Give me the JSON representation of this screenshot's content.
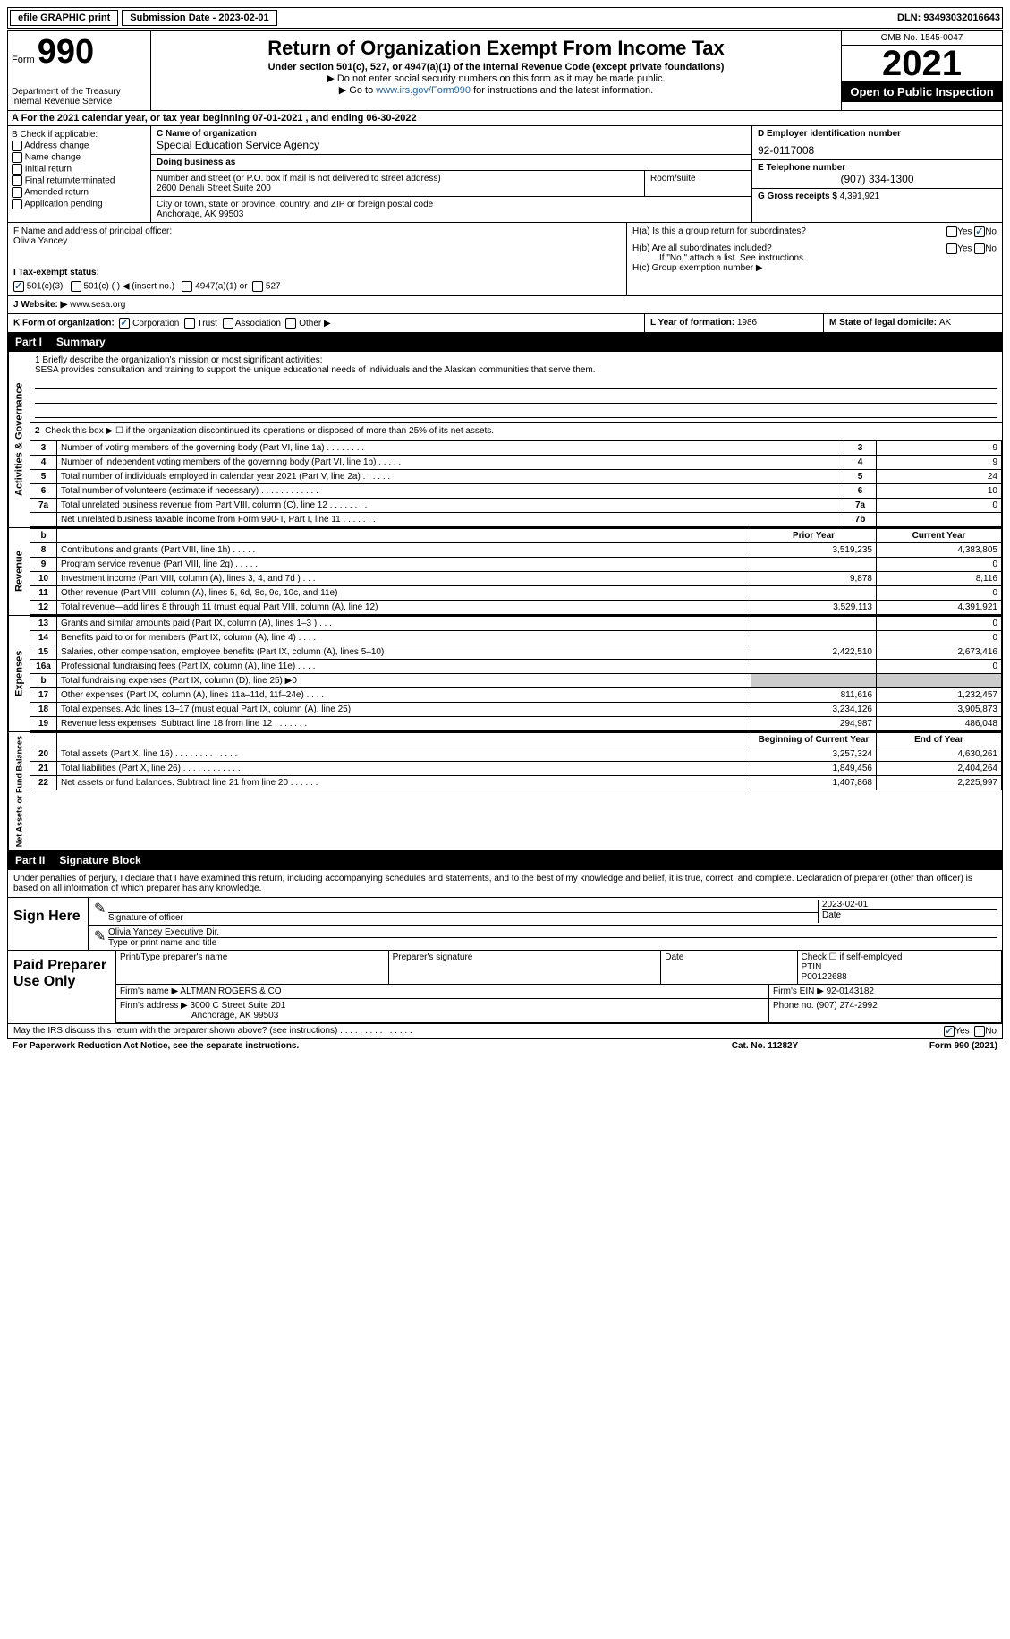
{
  "topbar": {
    "efile": "efile GRAPHIC print",
    "sub_label": "Submission Date - ",
    "sub_date": "2023-02-01",
    "dln_label": "DLN: ",
    "dln": "93493032016643"
  },
  "header": {
    "form_word": "Form",
    "form_num": "990",
    "dept": "Department of the Treasury\nInternal Revenue Service",
    "title": "Return of Organization Exempt From Income Tax",
    "sub1": "Under section 501(c), 527, or 4947(a)(1) of the Internal Revenue Code (except private foundations)",
    "sub2": "▶ Do not enter social security numbers on this form as it may be made public.",
    "sub3_pre": "▶ Go to ",
    "sub3_link": "www.irs.gov/Form990",
    "sub3_post": " for instructions and the latest information.",
    "omb": "OMB No. 1545-0047",
    "year": "2021",
    "inspect": "Open to Public Inspection"
  },
  "row_a": {
    "text": "A For the 2021 calendar year, or tax year beginning 07-01-2021    , and ending 06-30-2022"
  },
  "section_b": {
    "b_label": "B Check if applicable:",
    "checks": [
      "Address change",
      "Name change",
      "Initial return",
      "Final return/terminated",
      "Amended return",
      "Application pending"
    ],
    "c_label": "C Name of organization",
    "org_name": "Special Education Service Agency",
    "dba_label": "Doing business as",
    "dba": "",
    "street_label": "Number and street (or P.O. box if mail is not delivered to street address)",
    "street": "2600 Denali Street Suite 200",
    "suite_label": "Room/suite",
    "city_label": "City or town, state or province, country, and ZIP or foreign postal code",
    "city": "Anchorage, AK  99503",
    "d_label": "D Employer identification number",
    "ein": "92-0117008",
    "e_label": "E Telephone number",
    "phone": "(907) 334-1300",
    "g_label": "G Gross receipts $ ",
    "gross": "4,391,921"
  },
  "section_fh": {
    "f_label": "F Name and address of principal officer:",
    "officer": "Olivia Yancey",
    "ha_label": "H(a)  Is this a group return for subordinates?",
    "ha_no_checked": true,
    "hb_label": "H(b)  Are all subordinates included?",
    "hb_note": "If \"No,\" attach a list. See instructions.",
    "hc_label": "H(c)  Group exemption number ▶"
  },
  "row_i": {
    "label": "I  Tax-exempt status:",
    "opt1": "501(c)(3)",
    "opt2": "501(c) (   ) ◀ (insert no.)",
    "opt3": "4947(a)(1) or",
    "opt4": "527"
  },
  "row_j": {
    "label": "J  Website: ▶",
    "url": "www.sesa.org"
  },
  "row_k": {
    "label": "K Form of organization:",
    "opts": [
      "Corporation",
      "Trust",
      "Association",
      "Other ▶"
    ],
    "l_label": "L Year of formation: ",
    "l_val": "1986",
    "m_label": "M State of legal domicile: ",
    "m_val": "AK"
  },
  "part1": {
    "num": "Part I",
    "title": "Summary"
  },
  "mission": {
    "q1": "1   Briefly describe the organization's mission or most significant activities:",
    "text": "SESA provides consultation and training to support the unique educational needs of individuals and the Alaskan communities that serve them."
  },
  "activities": {
    "side": "Activities & Governance",
    "q2": "Check this box ▶ ☐  if the organization discontinued its operations or disposed of more than 25% of its net assets.",
    "rows": [
      {
        "n": "3",
        "d": "Number of voting members of the governing body (Part VI, line 1a)   .     .     .     .     .     .     .     .",
        "box": "3",
        "v": "9"
      },
      {
        "n": "4",
        "d": "Number of independent voting members of the governing body (Part VI, line 1b)    .     .     .     .     .",
        "box": "4",
        "v": "9"
      },
      {
        "n": "5",
        "d": "Total number of individuals employed in calendar year 2021 (Part V, line 2a)    .     .     .     .     .     .",
        "box": "5",
        "v": "24"
      },
      {
        "n": "6",
        "d": "Total number of volunteers (estimate if necessary)    .     .     .     .     .     .     .     .     .     .     .     .",
        "box": "6",
        "v": "10"
      },
      {
        "n": "7a",
        "d": "Total unrelated business revenue from Part VIII, column (C), line 12    .     .     .     .     .     .     .     .",
        "box": "7a",
        "v": "0"
      },
      {
        "n": "",
        "d": "Net unrelated business taxable income from Form 990-T, Part I, line 11   .     .     .     .     .     .     .",
        "box": "7b",
        "v": ""
      }
    ]
  },
  "revenue": {
    "side": "Revenue",
    "hdr_prior": "Prior Year",
    "hdr_curr": "Current Year",
    "rows": [
      {
        "n": "8",
        "d": "Contributions and grants (Part VIII, line 1h)    .     .     .     .     .",
        "p": "3,519,235",
        "c": "4,383,805"
      },
      {
        "n": "9",
        "d": "Program service revenue (Part VIII, line 2g)    .     .     .     .     .",
        "p": "",
        "c": "0"
      },
      {
        "n": "10",
        "d": "Investment income (Part VIII, column (A), lines 3, 4, and 7d )    .     .     .",
        "p": "9,878",
        "c": "8,116"
      },
      {
        "n": "11",
        "d": "Other revenue (Part VIII, column (A), lines 5, 6d, 8c, 9c, 10c, and 11e)",
        "p": "",
        "c": "0"
      },
      {
        "n": "12",
        "d": "Total revenue—add lines 8 through 11 (must equal Part VIII, column (A), line 12)",
        "p": "3,529,113",
        "c": "4,391,921"
      }
    ]
  },
  "expenses": {
    "side": "Expenses",
    "rows": [
      {
        "n": "13",
        "d": "Grants and similar amounts paid (Part IX, column (A), lines 1–3 )   .     .     .",
        "p": "",
        "c": "0"
      },
      {
        "n": "14",
        "d": "Benefits paid to or for members (Part IX, column (A), line 4)   .     .     .     .",
        "p": "",
        "c": "0"
      },
      {
        "n": "15",
        "d": "Salaries, other compensation, employee benefits (Part IX, column (A), lines 5–10)",
        "p": "2,422,510",
        "c": "2,673,416"
      },
      {
        "n": "16a",
        "d": "Professional fundraising fees (Part IX, column (A), line 11e)   .     .     .     .",
        "p": "",
        "c": "0"
      },
      {
        "n": "b",
        "d": "Total fundraising expenses (Part IX, column (D), line 25) ▶0",
        "p": "shade",
        "c": "shade"
      },
      {
        "n": "17",
        "d": "Other expenses (Part IX, column (A), lines 11a–11d, 11f–24e)   .     .     .     .",
        "p": "811,616",
        "c": "1,232,457"
      },
      {
        "n": "18",
        "d": "Total expenses. Add lines 13–17 (must equal Part IX, column (A), line 25)",
        "p": "3,234,126",
        "c": "3,905,873"
      },
      {
        "n": "19",
        "d": "Revenue less expenses. Subtract line 18 from line 12   .     .     .     .     .     .     .",
        "p": "294,987",
        "c": "486,048"
      }
    ]
  },
  "netassets": {
    "side": "Net Assets or Fund Balances",
    "hdr_beg": "Beginning of Current Year",
    "hdr_end": "End of Year",
    "rows": [
      {
        "n": "20",
        "d": "Total assets (Part X, line 16)   .     .     .     .     .     .     .     .     .     .     .     .     .",
        "p": "3,257,324",
        "c": "4,630,261"
      },
      {
        "n": "21",
        "d": "Total liabilities (Part X, line 26)   .     .     .     .     .     .     .     .     .     .     .     .",
        "p": "1,849,456",
        "c": "2,404,264"
      },
      {
        "n": "22",
        "d": "Net assets or fund balances. Subtract line 21 from line 20   .     .     .     .     .     .",
        "p": "1,407,868",
        "c": "2,225,997"
      }
    ]
  },
  "part2": {
    "num": "Part II",
    "title": "Signature Block",
    "decl": "Under penalties of perjury, I declare that I have examined this return, including accompanying schedules and statements, and to the best of my knowledge and belief, it is true, correct, and complete. Declaration of preparer (other than officer) is based on all information of which preparer has any knowledge."
  },
  "sign": {
    "label": "Sign Here",
    "sig_label": "Signature of officer",
    "date": "2023-02-01",
    "date_label": "Date",
    "name": "Olivia Yancey  Executive Dir.",
    "name_label": "Type or print name and title"
  },
  "prep": {
    "label": "Paid Preparer Use Only",
    "h1": "Print/Type preparer's name",
    "h2": "Preparer's signature",
    "h3": "Date",
    "h4_pre": "Check ☐ if self-employed",
    "h5": "PTIN",
    "ptin": "P00122688",
    "firm_label": "Firm's name     ▶",
    "firm": "ALTMAN ROGERS & CO",
    "ein_label": "Firm's EIN ▶",
    "ein": "92-0143182",
    "addr_label": "Firm's address ▶",
    "addr1": "3000 C Street Suite 201",
    "addr2": "Anchorage, AK  99503",
    "phone_label": "Phone no. ",
    "phone": "(907) 274-2992"
  },
  "footer": {
    "discuss": "May the IRS discuss this return with the preparer shown above? (see instructions)   .     .     .     .     .     .     .     .     .     .     .     .     .     .     .",
    "yes_checked": true,
    "notice": "For Paperwork Reduction Act Notice, see the separate instructions.",
    "cat": "Cat. No. 11282Y",
    "form": "Form 990 (2021)"
  }
}
